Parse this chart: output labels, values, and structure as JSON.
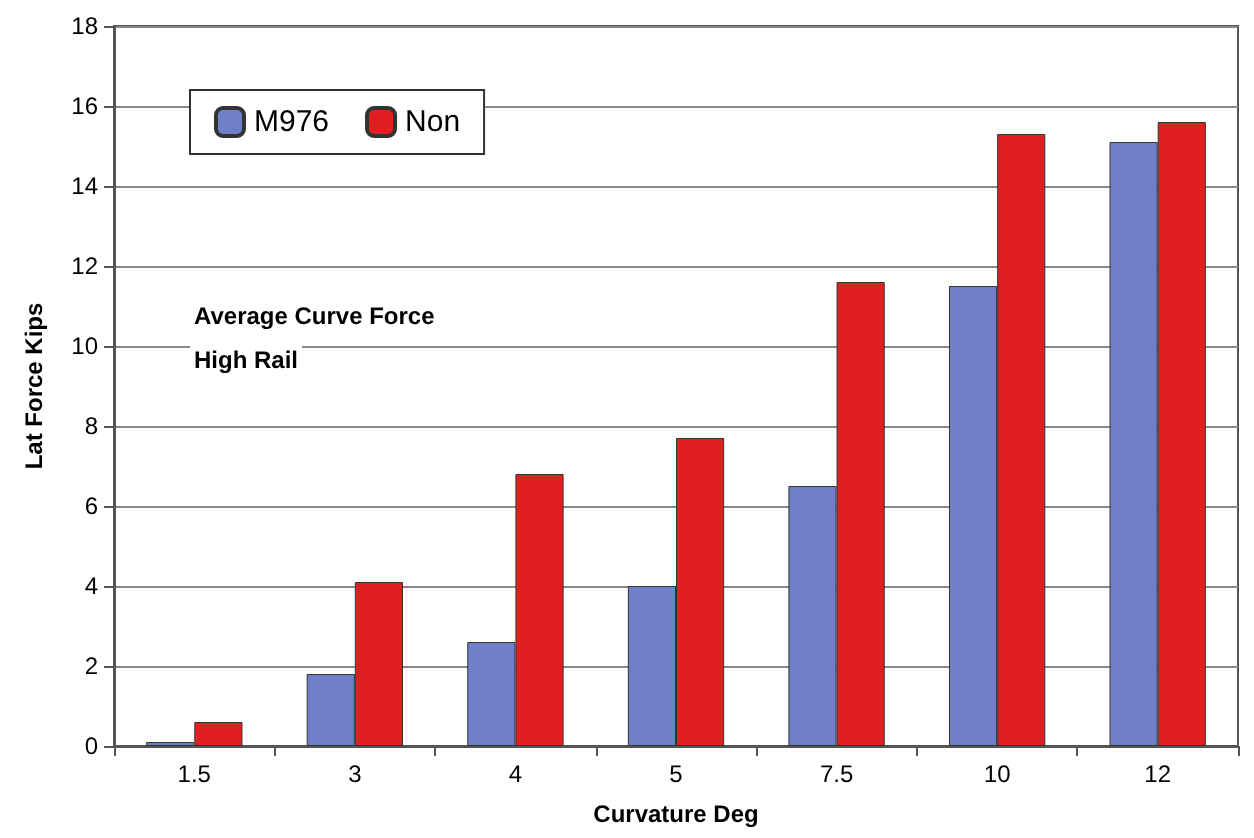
{
  "chart_data": {
    "type": "bar",
    "xlabel": "Curvature Deg",
    "ylabel": "Lat Force Kips",
    "categories": [
      "1.5",
      "3",
      "4",
      "5",
      "7.5",
      "10",
      "12"
    ],
    "series": [
      {
        "name": "M976",
        "color": "#6f7fc8",
        "values": [
          0.1,
          1.8,
          2.6,
          4.0,
          6.5,
          11.5,
          15.1
        ]
      },
      {
        "name": "Non",
        "color": "#e02020",
        "values": [
          0.6,
          4.1,
          6.8,
          7.7,
          11.6,
          15.3,
          15.6
        ]
      }
    ],
    "ylim": [
      0,
      18
    ],
    "yticks": [
      0,
      2,
      4,
      6,
      8,
      10,
      12,
      14,
      16,
      18
    ],
    "grid": "y",
    "legend": "top left",
    "annotations": [
      "Average Curve Force",
      "High Rail"
    ]
  }
}
